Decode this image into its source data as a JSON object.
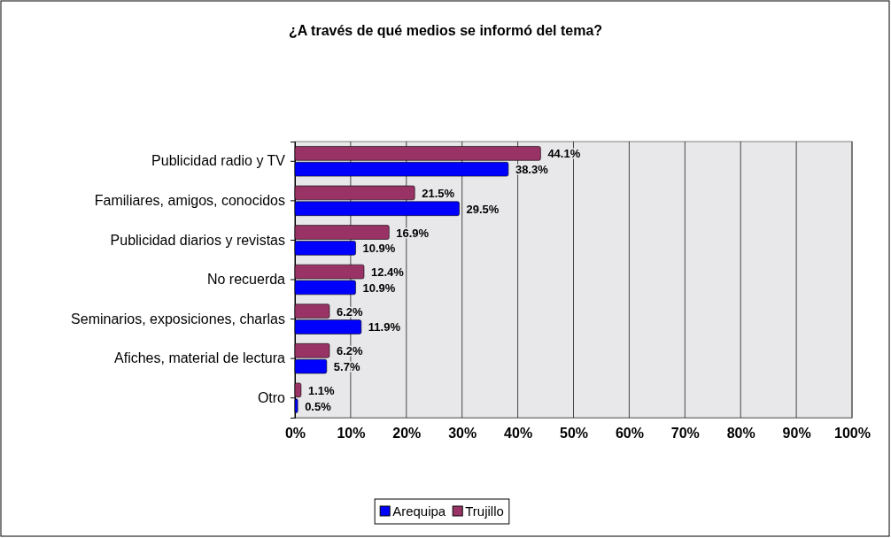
{
  "chart_data": {
    "type": "bar",
    "orientation": "horizontal",
    "title": "¿A través de qué medios se informó del tema?",
    "categories": [
      "Publicidad radio y TV",
      "Familiares, amigos, conocidos",
      "Publicidad diarios y revistas",
      "No recuerda",
      "Seminarios, exposiciones, charlas",
      "Afiches, material de lectura",
      "Otro"
    ],
    "series": [
      {
        "name": "Arequipa",
        "color": "#0000ff",
        "values": [
          38.3,
          29.5,
          10.9,
          10.9,
          11.9,
          5.7,
          0.5
        ],
        "value_labels": [
          "38.3%",
          "29.5%",
          "10.9%",
          "10.9%",
          "11.9%",
          "5.7%",
          "0.5%"
        ]
      },
      {
        "name": "Trujillo",
        "color": "#993366",
        "values": [
          44.1,
          21.5,
          16.9,
          12.4,
          6.2,
          6.2,
          1.1
        ],
        "value_labels": [
          "44.1%",
          "21.5%",
          "16.9%",
          "12.4%",
          "6.2%",
          "6.2%",
          "1.1%"
        ]
      }
    ],
    "xlim": [
      0,
      100
    ],
    "xticks": [
      {
        "value": 0,
        "label": "0%"
      },
      {
        "value": 10,
        "label": "10%"
      },
      {
        "value": 20,
        "label": "20%"
      },
      {
        "value": 30,
        "label": "30%"
      },
      {
        "value": 40,
        "label": "40%"
      },
      {
        "value": 50,
        "label": "50%"
      },
      {
        "value": 60,
        "label": "60%"
      },
      {
        "value": 70,
        "label": "70%"
      },
      {
        "value": 80,
        "label": "80%"
      },
      {
        "value": 90,
        "label": "90%"
      },
      {
        "value": 100,
        "label": "100%"
      }
    ],
    "grid": "x",
    "legend": "bottom"
  }
}
